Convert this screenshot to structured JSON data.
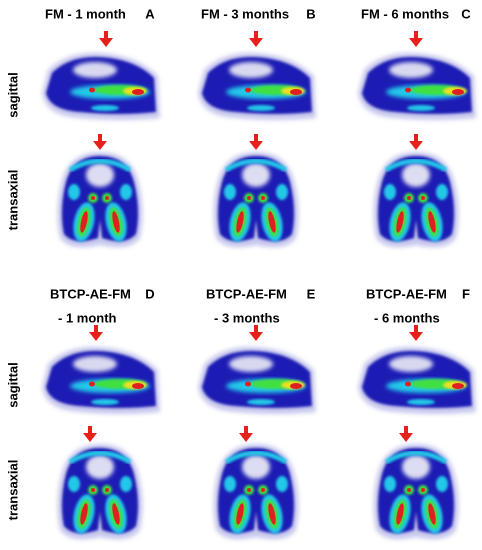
{
  "panels": [
    {
      "title": "FM - 1 month",
      "letter": "A"
    },
    {
      "title": "FM - 3 months",
      "letter": "B"
    },
    {
      "title": "FM - 6 months",
      "letter": "C"
    },
    {
      "title": "BTCP-AE-FM",
      "subtitle": "- 1 month",
      "letter": "D"
    },
    {
      "title": "BTCP-AE-FM",
      "subtitle": "- 3 months",
      "letter": "E"
    },
    {
      "title": "BTCP-AE-FM",
      "subtitle": "- 6 months",
      "letter": "F"
    }
  ],
  "row_labels": [
    "sagittal",
    "transaxial",
    "sagittal",
    "transaxial"
  ]
}
